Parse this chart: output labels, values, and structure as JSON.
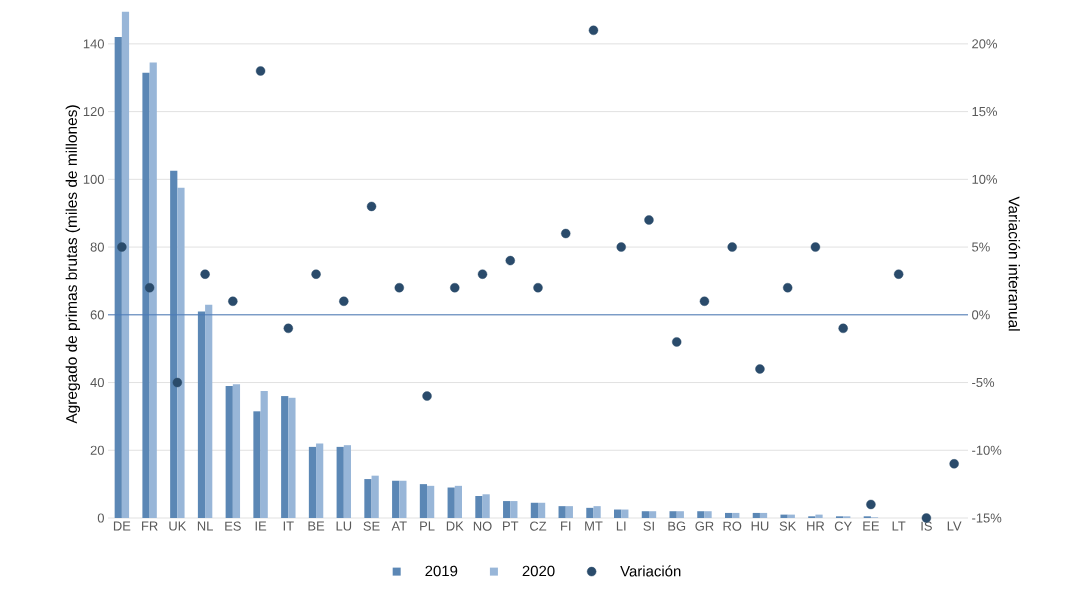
{
  "chart_data": {
    "type": "bar",
    "ylabel": "Agregado de primas brutas (miles de millones)",
    "y2label": "Variación interanual",
    "categories": [
      "DE",
      "FR",
      "UK",
      "NL",
      "ES",
      "IE",
      "IT",
      "BE",
      "LU",
      "SE",
      "AT",
      "PL",
      "DK",
      "NO",
      "PT",
      "CZ",
      "FI",
      "MT",
      "LI",
      "SI",
      "BG",
      "GR",
      "RO",
      "HU",
      "SK",
      "HR",
      "CY",
      "EE",
      "LT",
      "IS",
      "LV"
    ],
    "series": [
      {
        "name": "2019",
        "color": "#5b87b5",
        "values": [
          142,
          131.5,
          102.5,
          61,
          39,
          31.5,
          36,
          21,
          21,
          11.5,
          11,
          10,
          9,
          6.5,
          5,
          4.5,
          3.5,
          3,
          2.5,
          2,
          2,
          2,
          1.5,
          1.5,
          1,
          0.5,
          0.5,
          0.5,
          0,
          0,
          0
        ]
      },
      {
        "name": "2020",
        "color": "#98b6d8",
        "values": [
          149.5,
          134.5,
          97.5,
          63,
          39.5,
          37.5,
          35.5,
          22,
          21.5,
          12.5,
          11,
          9.5,
          9.5,
          7,
          5,
          4.5,
          3.5,
          3.5,
          2.5,
          2,
          2,
          2,
          1.5,
          1.5,
          1,
          1,
          0.5,
          0.2,
          0,
          0,
          0
        ]
      },
      {
        "name": "Variación",
        "type": "scatter",
        "axis": "y2",
        "color": "#2a4b6b",
        "values": [
          5,
          2,
          -5,
          3,
          1,
          18,
          -1,
          3,
          1,
          8,
          2,
          -6,
          2,
          3,
          4,
          2,
          6,
          21,
          5,
          7,
          -2,
          1,
          5,
          -4,
          2,
          5,
          -1,
          -14,
          3,
          -15,
          -11
        ]
      }
    ],
    "ylim": [
      0,
      150
    ],
    "yticks": [
      0,
      20,
      40,
      60,
      80,
      100,
      120,
      140
    ],
    "y2lim": [
      -15,
      22.5
    ],
    "y2ticks": [
      {
        "value": -15,
        "label": "-15%"
      },
      {
        "value": -10,
        "label": "-10%"
      },
      {
        "value": -5,
        "label": "-5%"
      },
      {
        "value": 0,
        "label": "0%"
      },
      {
        "value": 5,
        "label": "5%"
      },
      {
        "value": 10,
        "label": "10%"
      },
      {
        "value": 15,
        "label": "15%"
      },
      {
        "value": 20,
        "label": "20%"
      }
    ],
    "ref_lines": [
      {
        "axis": "y2",
        "value": 0,
        "color": "#4a7ab8"
      }
    ],
    "grid": "y",
    "legend": "bottom"
  }
}
